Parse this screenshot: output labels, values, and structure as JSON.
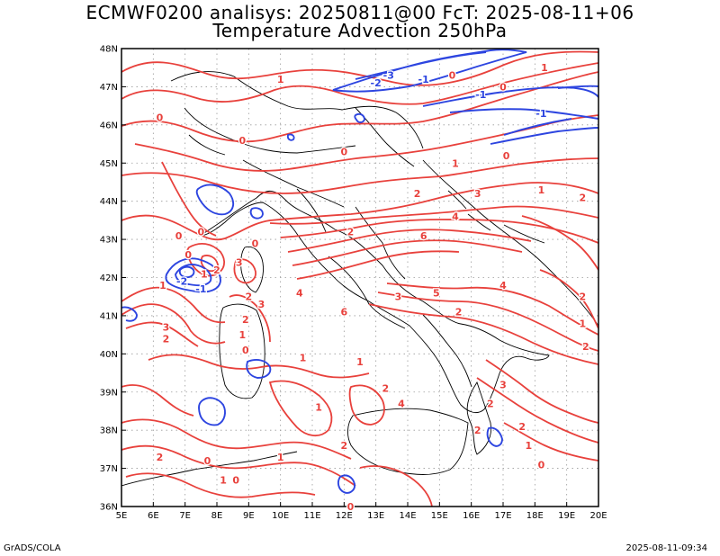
{
  "title_line1": "ECMWF0200 analisys: 20250811@00 FcT: 2025-08-11+06",
  "title_line2": "Temperature Advection 250hPa",
  "credit": "GrADS/COLA",
  "timestamp": "2025-08-11-09:34",
  "colors": {
    "positive_contour": "#e8413c",
    "negative_contour": "#2d45e0",
    "coastline": "#000000",
    "grid": "#9a9a9a"
  },
  "map": {
    "lon_range": [
      5,
      20
    ],
    "lat_range": [
      36,
      48
    ],
    "x_ticks": [
      "5E",
      "6E",
      "7E",
      "8E",
      "9E",
      "10E",
      "11E",
      "12E",
      "13E",
      "14E",
      "15E",
      "16E",
      "17E",
      "18E",
      "19E",
      "20E"
    ],
    "y_ticks": [
      "36N",
      "37N",
      "38N",
      "39N",
      "40N",
      "41N",
      "42N",
      "43N",
      "44N",
      "45N",
      "46N",
      "47N",
      "48N"
    ],
    "grid": "dotted"
  },
  "contour_labels": [
    {
      "text": "1",
      "lon": 10.0,
      "lat": 47.2,
      "c": "pos"
    },
    {
      "text": "0",
      "lon": 15.4,
      "lat": 47.3,
      "c": "pos"
    },
    {
      "text": "0",
      "lon": 17.0,
      "lat": 47.0,
      "c": "pos"
    },
    {
      "text": "1",
      "lon": 18.3,
      "lat": 47.5,
      "c": "pos"
    },
    {
      "text": "-3",
      "lon": 13.4,
      "lat": 47.3,
      "c": "neg"
    },
    {
      "text": "-2",
      "lon": 13.0,
      "lat": 47.1,
      "c": "neg"
    },
    {
      "text": "-1",
      "lon": 14.5,
      "lat": 47.2,
      "c": "neg"
    },
    {
      "text": "-1",
      "lon": 16.3,
      "lat": 46.8,
      "c": "neg"
    },
    {
      "text": "-1",
      "lon": 18.2,
      "lat": 46.3,
      "c": "neg"
    },
    {
      "text": "0",
      "lon": 8.8,
      "lat": 45.6,
      "c": "pos"
    },
    {
      "text": "0",
      "lon": 12.0,
      "lat": 45.3,
      "c": "pos"
    },
    {
      "text": "0",
      "lon": 6.2,
      "lat": 46.2,
      "c": "pos"
    },
    {
      "text": "1",
      "lon": 15.5,
      "lat": 45.0,
      "c": "pos"
    },
    {
      "text": "0",
      "lon": 17.1,
      "lat": 45.2,
      "c": "pos"
    },
    {
      "text": "2",
      "lon": 14.3,
      "lat": 44.2,
      "c": "pos"
    },
    {
      "text": "3",
      "lon": 16.2,
      "lat": 44.2,
      "c": "pos"
    },
    {
      "text": "1",
      "lon": 18.2,
      "lat": 44.3,
      "c": "pos"
    },
    {
      "text": "2",
      "lon": 19.5,
      "lat": 44.1,
      "c": "pos"
    },
    {
      "text": "4",
      "lon": 15.5,
      "lat": 43.6,
      "c": "pos"
    },
    {
      "text": "6",
      "lon": 14.5,
      "lat": 43.1,
      "c": "pos"
    },
    {
      "text": "2",
      "lon": 12.2,
      "lat": 43.2,
      "c": "pos"
    },
    {
      "text": "0",
      "lon": 7.5,
      "lat": 43.2,
      "c": "pos"
    },
    {
      "text": "0",
      "lon": 6.8,
      "lat": 43.1,
      "c": "pos"
    },
    {
      "text": "0",
      "lon": 9.2,
      "lat": 42.9,
      "c": "pos"
    },
    {
      "text": "0",
      "lon": 7.1,
      "lat": 42.6,
      "c": "pos"
    },
    {
      "text": "1",
      "lon": 7.6,
      "lat": 42.1,
      "c": "pos"
    },
    {
      "text": "2",
      "lon": 8.0,
      "lat": 42.2,
      "c": "pos"
    },
    {
      "text": "3",
      "lon": 8.7,
      "lat": 42.4,
      "c": "pos"
    },
    {
      "text": "1",
      "lon": 6.3,
      "lat": 41.8,
      "c": "pos"
    },
    {
      "text": "-2",
      "lon": 6.9,
      "lat": 41.9,
      "c": "neg"
    },
    {
      "text": "-1",
      "lon": 7.5,
      "lat": 41.7,
      "c": "neg"
    },
    {
      "text": "2",
      "lon": 9.0,
      "lat": 41.5,
      "c": "pos"
    },
    {
      "text": "3",
      "lon": 9.4,
      "lat": 41.3,
      "c": "pos"
    },
    {
      "text": "4",
      "lon": 10.6,
      "lat": 41.6,
      "c": "pos"
    },
    {
      "text": "6",
      "lon": 12.0,
      "lat": 41.1,
      "c": "pos"
    },
    {
      "text": "5",
      "lon": 14.9,
      "lat": 41.6,
      "c": "pos"
    },
    {
      "text": "4",
      "lon": 17.0,
      "lat": 41.8,
      "c": "pos"
    },
    {
      "text": "3",
      "lon": 13.7,
      "lat": 41.5,
      "c": "pos"
    },
    {
      "text": "2",
      "lon": 15.6,
      "lat": 41.1,
      "c": "pos"
    },
    {
      "text": "2",
      "lon": 8.9,
      "lat": 40.9,
      "c": "pos"
    },
    {
      "text": "3",
      "lon": 6.4,
      "lat": 40.7,
      "c": "pos"
    },
    {
      "text": "2",
      "lon": 6.4,
      "lat": 40.4,
      "c": "pos"
    },
    {
      "text": "1",
      "lon": 8.8,
      "lat": 40.5,
      "c": "pos"
    },
    {
      "text": "0",
      "lon": 8.9,
      "lat": 40.1,
      "c": "pos"
    },
    {
      "text": "1",
      "lon": 10.7,
      "lat": 39.9,
      "c": "pos"
    },
    {
      "text": "1",
      "lon": 12.5,
      "lat": 39.8,
      "c": "pos"
    },
    {
      "text": "2",
      "lon": 13.3,
      "lat": 39.1,
      "c": "pos"
    },
    {
      "text": "1",
      "lon": 11.2,
      "lat": 38.6,
      "c": "pos"
    },
    {
      "text": "3",
      "lon": 17.0,
      "lat": 39.2,
      "c": "pos"
    },
    {
      "text": "2",
      "lon": 16.6,
      "lat": 38.7,
      "c": "pos"
    },
    {
      "text": "2",
      "lon": 16.2,
      "lat": 38.0,
      "c": "pos"
    },
    {
      "text": "2",
      "lon": 17.6,
      "lat": 38.1,
      "c": "pos"
    },
    {
      "text": "1",
      "lon": 17.8,
      "lat": 37.6,
      "c": "pos"
    },
    {
      "text": "2",
      "lon": 12.0,
      "lat": 37.6,
      "c": "pos"
    },
    {
      "text": "0",
      "lon": 18.2,
      "lat": 37.1,
      "c": "pos"
    },
    {
      "text": "2",
      "lon": 6.2,
      "lat": 37.3,
      "c": "pos"
    },
    {
      "text": "0",
      "lon": 7.7,
      "lat": 37.2,
      "c": "pos"
    },
    {
      "text": "1",
      "lon": 10.0,
      "lat": 37.3,
      "c": "pos"
    },
    {
      "text": "1",
      "lon": 8.2,
      "lat": 36.7,
      "c": "pos"
    },
    {
      "text": "0",
      "lon": 8.6,
      "lat": 36.7,
      "c": "pos"
    },
    {
      "text": "0",
      "lon": 12.2,
      "lat": 36.0,
      "c": "pos"
    },
    {
      "text": "2",
      "lon": 19.5,
      "lat": 41.5,
      "c": "pos"
    },
    {
      "text": "1",
      "lon": 19.5,
      "lat": 40.8,
      "c": "pos"
    },
    {
      "text": "2",
      "lon": 19.6,
      "lat": 40.2,
      "c": "pos"
    },
    {
      "text": "4",
      "lon": 13.8,
      "lat": 38.7,
      "c": "pos"
    }
  ]
}
